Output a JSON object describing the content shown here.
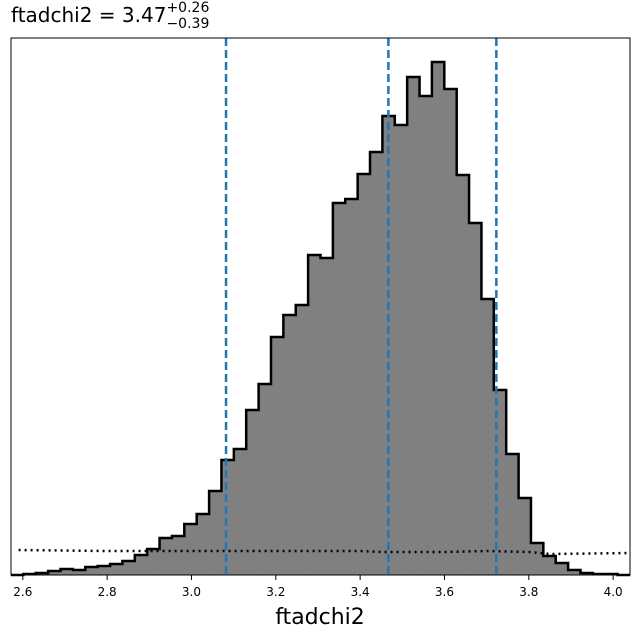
{
  "chart_data": {
    "type": "histogram",
    "title_main": "ftadchi2 = 3.47",
    "title_upper": "+0.26",
    "title_lower": "−0.39",
    "xlabel": "ftadchi2",
    "bins": [
      2.572,
      2.6014,
      2.6307,
      2.6601,
      2.6894,
      2.7188,
      2.7482,
      2.7775,
      2.8069,
      2.8362,
      2.8656,
      2.895,
      2.9243,
      2.9537,
      2.983,
      3.0124,
      3.0418,
      3.0711,
      3.1005,
      3.1298,
      3.1592,
      3.1886,
      3.2179,
      3.2473,
      3.2766,
      3.306,
      3.3354,
      3.3647,
      3.3941,
      3.4234,
      3.4528,
      3.4822,
      3.5115,
      3.5409,
      3.5702,
      3.5996,
      3.629,
      3.6583,
      3.6877,
      3.717,
      3.7464,
      3.7758,
      3.8051,
      3.8345,
      3.8638,
      3.8932,
      3.9226,
      3.9519,
      3.9813,
      4.0106,
      4.04
    ],
    "values": [
      0,
      1,
      2,
      4,
      6,
      5,
      8,
      9,
      11,
      14,
      20,
      26,
      37,
      39,
      51,
      61,
      84,
      115,
      126,
      165,
      191,
      238,
      260,
      270,
      320,
      317,
      372,
      376,
      401,
      423,
      459,
      450,
      498,
      479,
      513,
      486,
      400,
      352,
      276,
      185,
      121,
      77,
      32,
      19,
      12,
      5,
      2,
      1,
      1,
      0
    ],
    "color": "#808080",
    "edge_color": "#000000",
    "overlay": {
      "x": [
        2.59,
        2.8,
        3.0,
        3.4,
        3.45,
        3.6,
        3.7,
        3.8,
        3.85,
        4.04
      ],
      "values": [
        25,
        24,
        24,
        24,
        23,
        23,
        24,
        23,
        21,
        22
      ],
      "color": "#000000"
    },
    "quantiles": [
      3.082,
      3.467,
      3.723
    ],
    "quantile_color": "#1f77b4",
    "xlim": [
      2.572,
      4.04
    ],
    "ylim": [
      0,
      537
    ],
    "xticks": [
      2.6,
      2.8,
      {
        "value": 3.0,
        "label": "3.0"
      },
      3.2,
      3.4,
      3.6,
      3.8,
      {
        "value": 4.0,
        "label": "4.0"
      }
    ]
  }
}
